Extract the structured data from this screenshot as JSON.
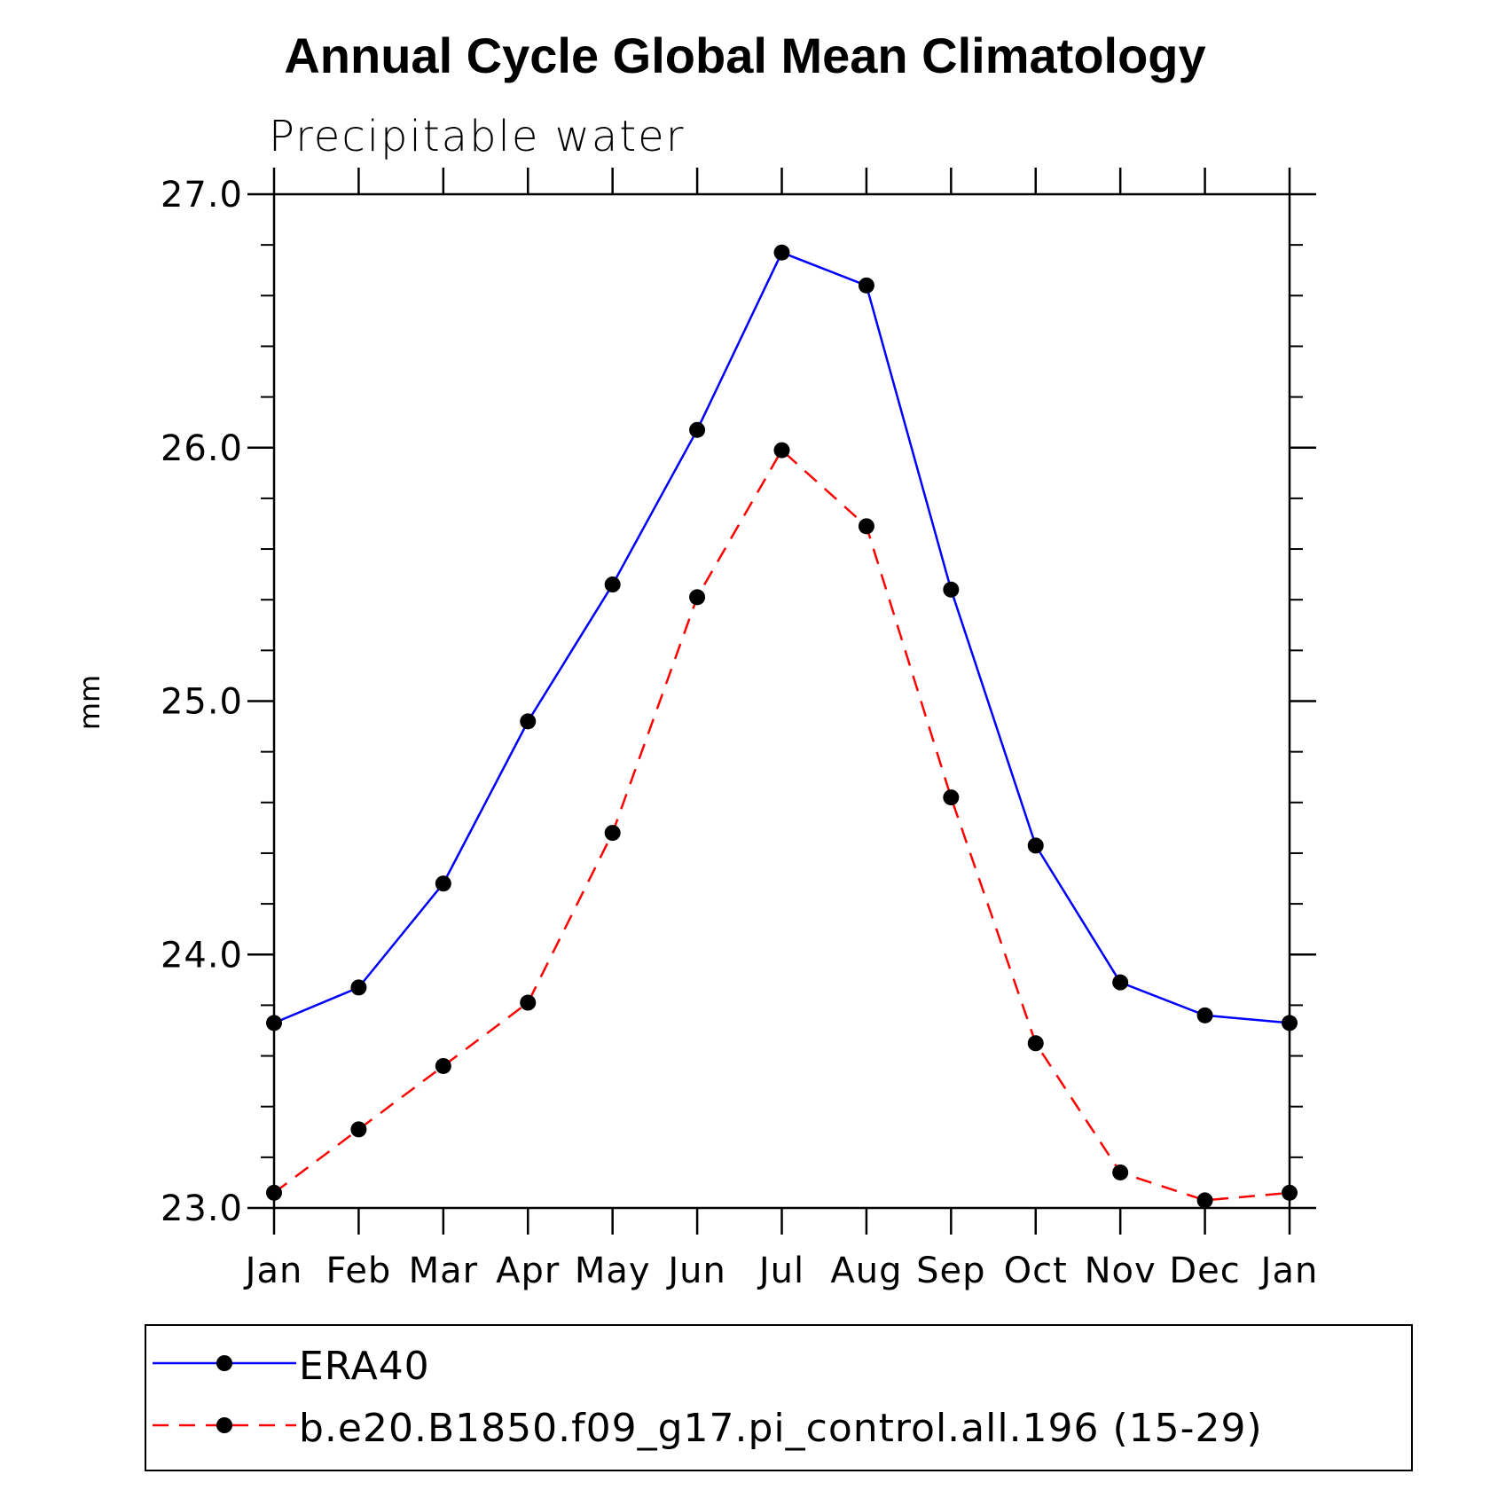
{
  "chart_data": {
    "type": "line",
    "title": "Annual Cycle Global Mean Climatology",
    "subtitle": "Precipitable water",
    "xlabel": "",
    "ylabel": "mm",
    "categories": [
      "Jan",
      "Feb",
      "Mar",
      "Apr",
      "May",
      "Jun",
      "Jul",
      "Aug",
      "Sep",
      "Oct",
      "Nov",
      "Dec",
      "Jan"
    ],
    "ylim": [
      23.0,
      27.0
    ],
    "yticks": [
      "23.0",
      "24.0",
      "25.0",
      "26.0",
      "27.0"
    ],
    "ytick_values": [
      23.0,
      24.0,
      25.0,
      26.0,
      27.0
    ],
    "yminor_step": 0.2,
    "grid": false,
    "legend_position": "bottom",
    "series": [
      {
        "name": "ERA40",
        "color": "#0000ff",
        "style": "solid",
        "values": [
          23.73,
          23.87,
          24.28,
          24.92,
          25.46,
          26.07,
          26.77,
          26.64,
          25.44,
          24.43,
          23.89,
          23.76,
          23.73
        ]
      },
      {
        "name": "b.e20.B1850.f09_g17.pi_control.all.196 (15-29)",
        "color": "#ff0000",
        "style": "dashed",
        "values": [
          23.06,
          23.31,
          23.56,
          23.81,
          24.48,
          25.41,
          25.99,
          25.69,
          24.62,
          23.65,
          23.14,
          23.03,
          23.06
        ]
      }
    ]
  }
}
